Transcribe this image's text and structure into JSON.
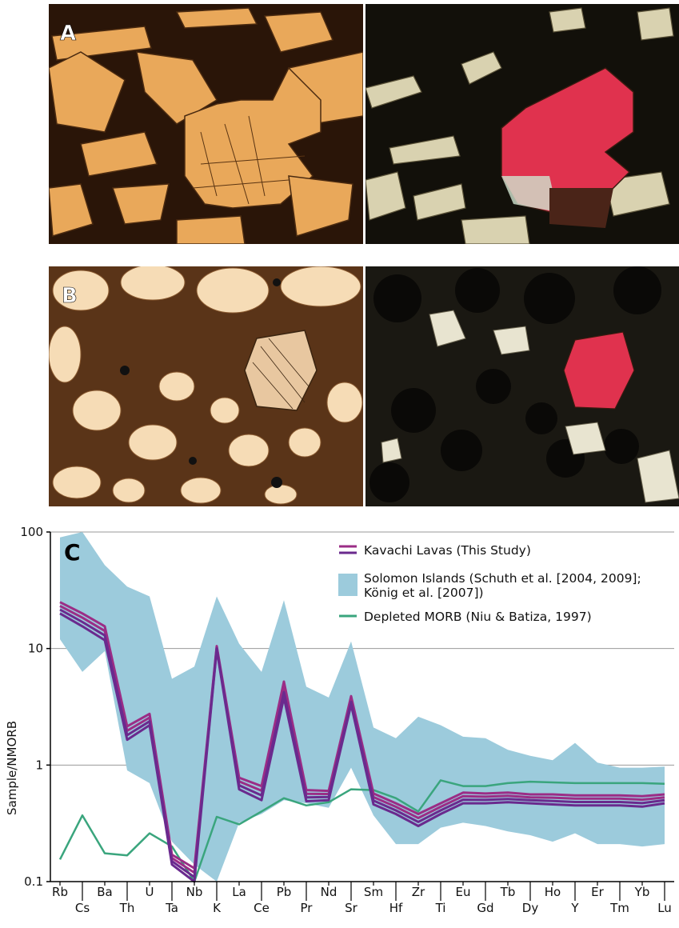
{
  "panels": {
    "a_label": "A",
    "b_label": "B",
    "c_label": "C"
  },
  "colors": {
    "ppl_background": "#e9a85a",
    "ppl_groundmass": "#2a1508",
    "xpl_background": "#12100a",
    "olivine_xpl": "#e0324e",
    "vesicle_ppl": "#f6dcb6",
    "band": "#9ccbdc",
    "kavachi": "#9b2d86",
    "kavachi_dark": "#6a2a8e",
    "morb": "#3aa57d",
    "grid": "#9a9a9a"
  },
  "chart_data": {
    "type": "line",
    "ylabel": "Sample/NMORB",
    "yscale": "log",
    "ylim": [
      0.1,
      100
    ],
    "yticks": [
      "0.1",
      "1",
      "10",
      "100"
    ],
    "grid": "horizontal at 1, 10, 100",
    "legend_position": "top-right",
    "categories": [
      "Rb",
      "Cs",
      "Ba",
      "Th",
      "U",
      "Ta",
      "Nb",
      "K",
      "La",
      "Ce",
      "Pb",
      "Pr",
      "Nd",
      "Sr",
      "Sm",
      "Hf",
      "Zr",
      "Ti",
      "Eu",
      "Gd",
      "Tb",
      "Dy",
      "Ho",
      "Y",
      "Er",
      "Tm",
      "Yb",
      "Lu"
    ],
    "top_row_labels": [
      "Rb",
      "Ba",
      "U",
      "Nb",
      "La",
      "Pb",
      "Nd",
      "Sm",
      "Zr",
      "Eu",
      "Tb",
      "Ho",
      "Er",
      "Yb"
    ],
    "bottom_row_labels": [
      "Cs",
      "Th",
      "Ta",
      "K",
      "Ce",
      "Pr",
      "Sr",
      "Hf",
      "Ti",
      "Gd",
      "Dy",
      "Y",
      "Tm",
      "Lu"
    ],
    "band": {
      "name": "Solomon Islands (Schuth et al. [2004, 2009]; König et al. [2007])",
      "legend_line1": "Solomon Islands (Schuth et al. [2004, 2009];",
      "legend_line2": "König et al. [2007])",
      "upper": [
        90,
        100,
        52,
        34,
        28,
        5.5,
        7,
        28,
        11,
        6.3,
        26,
        4.7,
        3.8,
        11.5,
        2.1,
        1.7,
        2.6,
        2.2,
        1.75,
        1.7,
        1.35,
        1.2,
        1.1,
        1.55,
        1.05,
        0.95,
        0.95,
        0.97
      ],
      "lower": [
        12,
        6.3,
        9.5,
        0.9,
        0.7,
        0.22,
        0.14,
        0.1,
        0.32,
        0.38,
        0.5,
        0.47,
        0.43,
        0.95,
        0.37,
        0.21,
        0.21,
        0.29,
        0.32,
        0.3,
        0.27,
        0.25,
        0.22,
        0.26,
        0.21,
        0.21,
        0.2,
        0.21
      ]
    },
    "series": [
      {
        "name": "Kavachi Lavas (This Study)",
        "values_max": [
          25,
          20,
          15.5,
          2.15,
          2.75,
          0.17,
          0.13,
          10.5,
          0.78,
          0.66,
          5.2,
          0.61,
          0.6,
          3.9,
          0.57,
          0.47,
          0.38,
          0.47,
          0.58,
          0.57,
          0.58,
          0.56,
          0.56,
          0.55,
          0.55,
          0.55,
          0.54,
          0.56
        ],
        "values_min": [
          20,
          15.5,
          11.8,
          1.65,
          2.2,
          0.14,
          0.1,
          9.8,
          0.62,
          0.5,
          3.8,
          0.49,
          0.5,
          3.3,
          0.46,
          0.38,
          0.3,
          0.38,
          0.47,
          0.47,
          0.48,
          0.47,
          0.46,
          0.45,
          0.45,
          0.45,
          0.44,
          0.47
        ]
      },
      {
        "name": "Depleted MORB (Niu & Batiza, 1997)",
        "values": [
          0.155,
          0.37,
          0.175,
          0.168,
          0.26,
          0.2,
          0.1,
          0.36,
          0.31,
          0.4,
          0.52,
          0.45,
          0.48,
          0.62,
          0.61,
          0.52,
          0.4,
          0.74,
          0.66,
          0.66,
          0.7,
          0.72,
          0.71,
          0.7,
          0.7,
          0.7,
          0.7,
          0.69
        ]
      }
    ]
  }
}
